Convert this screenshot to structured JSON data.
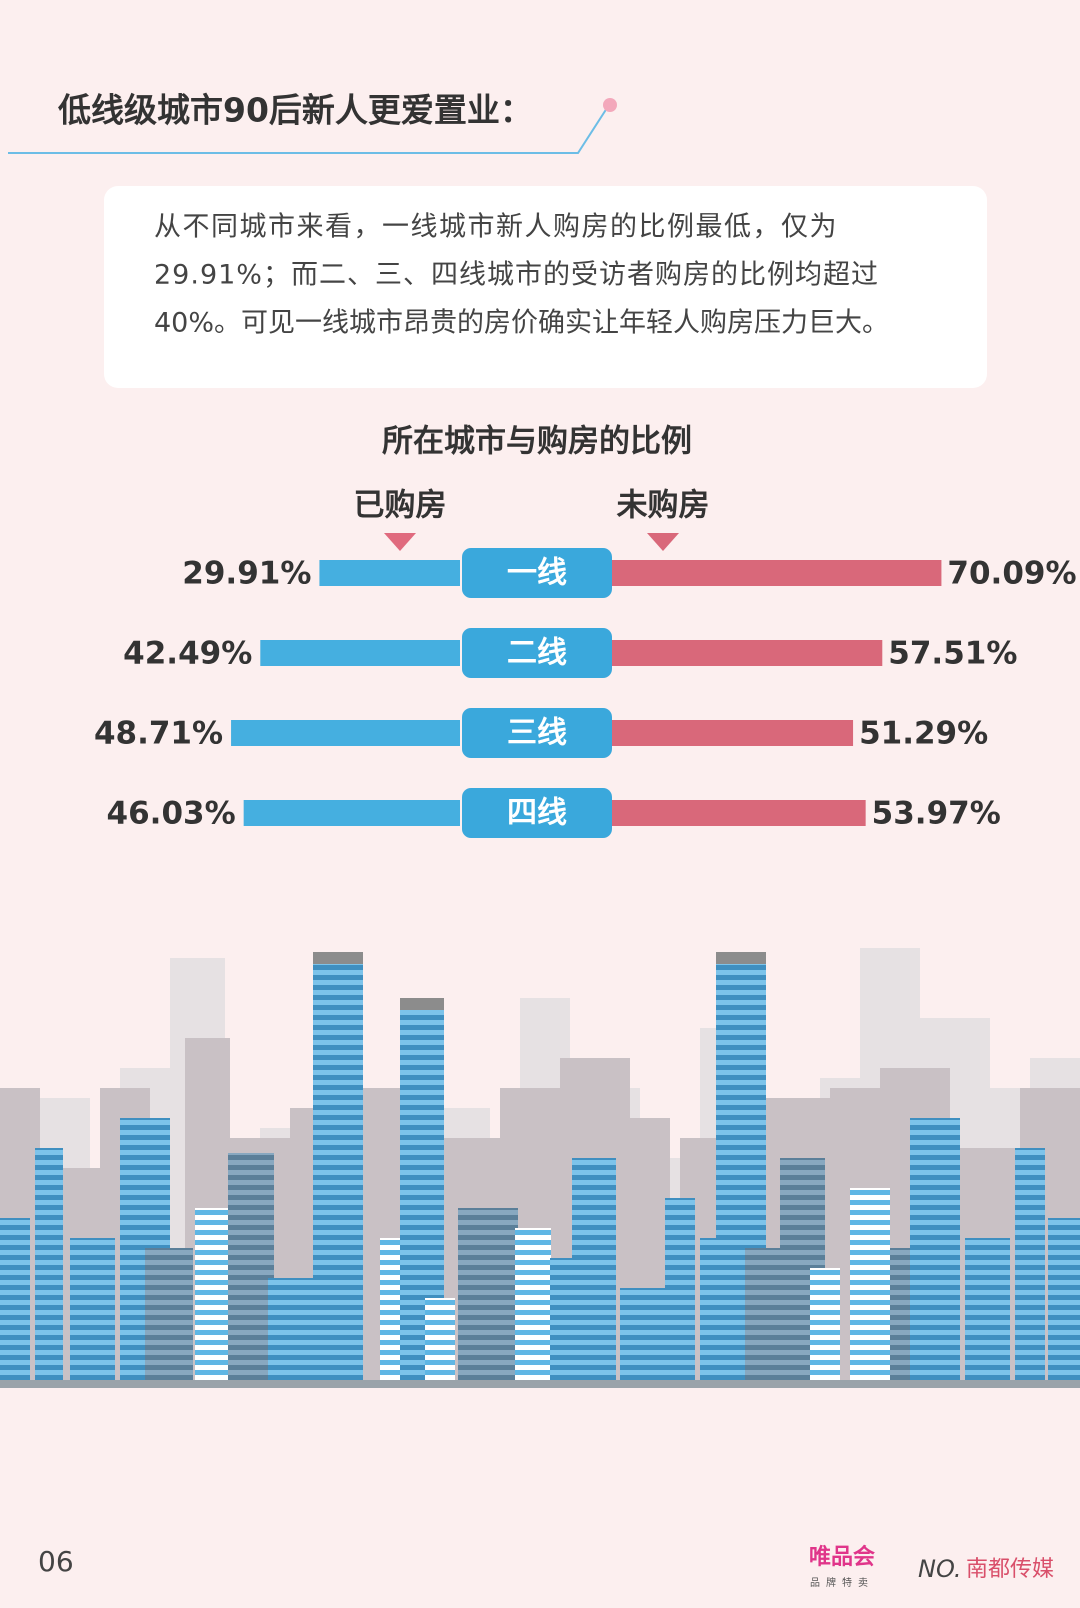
{
  "header": {
    "title": "低线级城市90后新人更爱置业："
  },
  "intro": {
    "lines": [
      "从不同城市来看，一线城市新人购房的比例最低，仅为",
      "29.91%；而二、三、四线城市的受访者购房的比例均超过",
      "40%。可见一线城市昂贵的房价确实让年轻人购房压力巨大。"
    ]
  },
  "chart_data": {
    "type": "butterfly",
    "title": "所在城市与购房的比例",
    "categories": [
      "一线",
      "二线",
      "三线",
      "四线"
    ],
    "category_color": "#3aa8dc",
    "series": [
      {
        "name": "已购房",
        "color": "#45afe0",
        "values": [
          29.91,
          42.49,
          48.71,
          46.03
        ],
        "value_labels": [
          "29.91%",
          "42.49%",
          "48.71%",
          "46.03%"
        ]
      },
      {
        "name": "未购房",
        "color": "#d9687a",
        "values": [
          70.09,
          57.51,
          51.29,
          53.97
        ],
        "value_labels": [
          "70.09%",
          "57.51%",
          "51.29%",
          "53.97%"
        ]
      }
    ]
  },
  "footer": {
    "page": "06",
    "logo1": "唯品会",
    "logo1_sub": "品牌特卖",
    "logo2": "南都传媒"
  }
}
